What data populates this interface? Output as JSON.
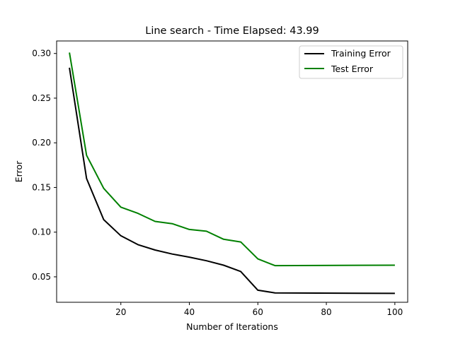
{
  "chart_data": {
    "type": "line",
    "title": "Line search - Time Elapsed: 43.99",
    "xlabel": "Number of Iterations",
    "ylabel": "Error",
    "xlim": [
      1.25,
      103.75
    ],
    "ylim": [
      0.0215,
      0.314
    ],
    "xticks": [
      20,
      40,
      60,
      80,
      100
    ],
    "yticks": [
      0.05,
      0.1,
      0.15,
      0.2,
      0.25,
      0.3
    ],
    "ytick_labels": [
      "0.05",
      "0.10",
      "0.15",
      "0.20",
      "0.25",
      "0.30"
    ],
    "grid": false,
    "legend_position": "top-right",
    "series": [
      {
        "name": "Training Error",
        "color": "#000000",
        "x": [
          5,
          10,
          15,
          20,
          25,
          30,
          35,
          40,
          45,
          50,
          55,
          60,
          65,
          100
        ],
        "values": [
          0.284,
          0.16,
          0.114,
          0.096,
          0.086,
          0.08,
          0.0755,
          0.072,
          0.068,
          0.063,
          0.056,
          0.035,
          0.032,
          0.0315
        ]
      },
      {
        "name": "Test Error",
        "color": "#008000",
        "x": [
          5,
          10,
          15,
          20,
          25,
          30,
          35,
          40,
          45,
          50,
          55,
          60,
          65,
          100
        ],
        "values": [
          0.301,
          0.186,
          0.149,
          0.128,
          0.121,
          0.112,
          0.1095,
          0.103,
          0.101,
          0.092,
          0.089,
          0.07,
          0.0625,
          0.063
        ]
      }
    ]
  }
}
